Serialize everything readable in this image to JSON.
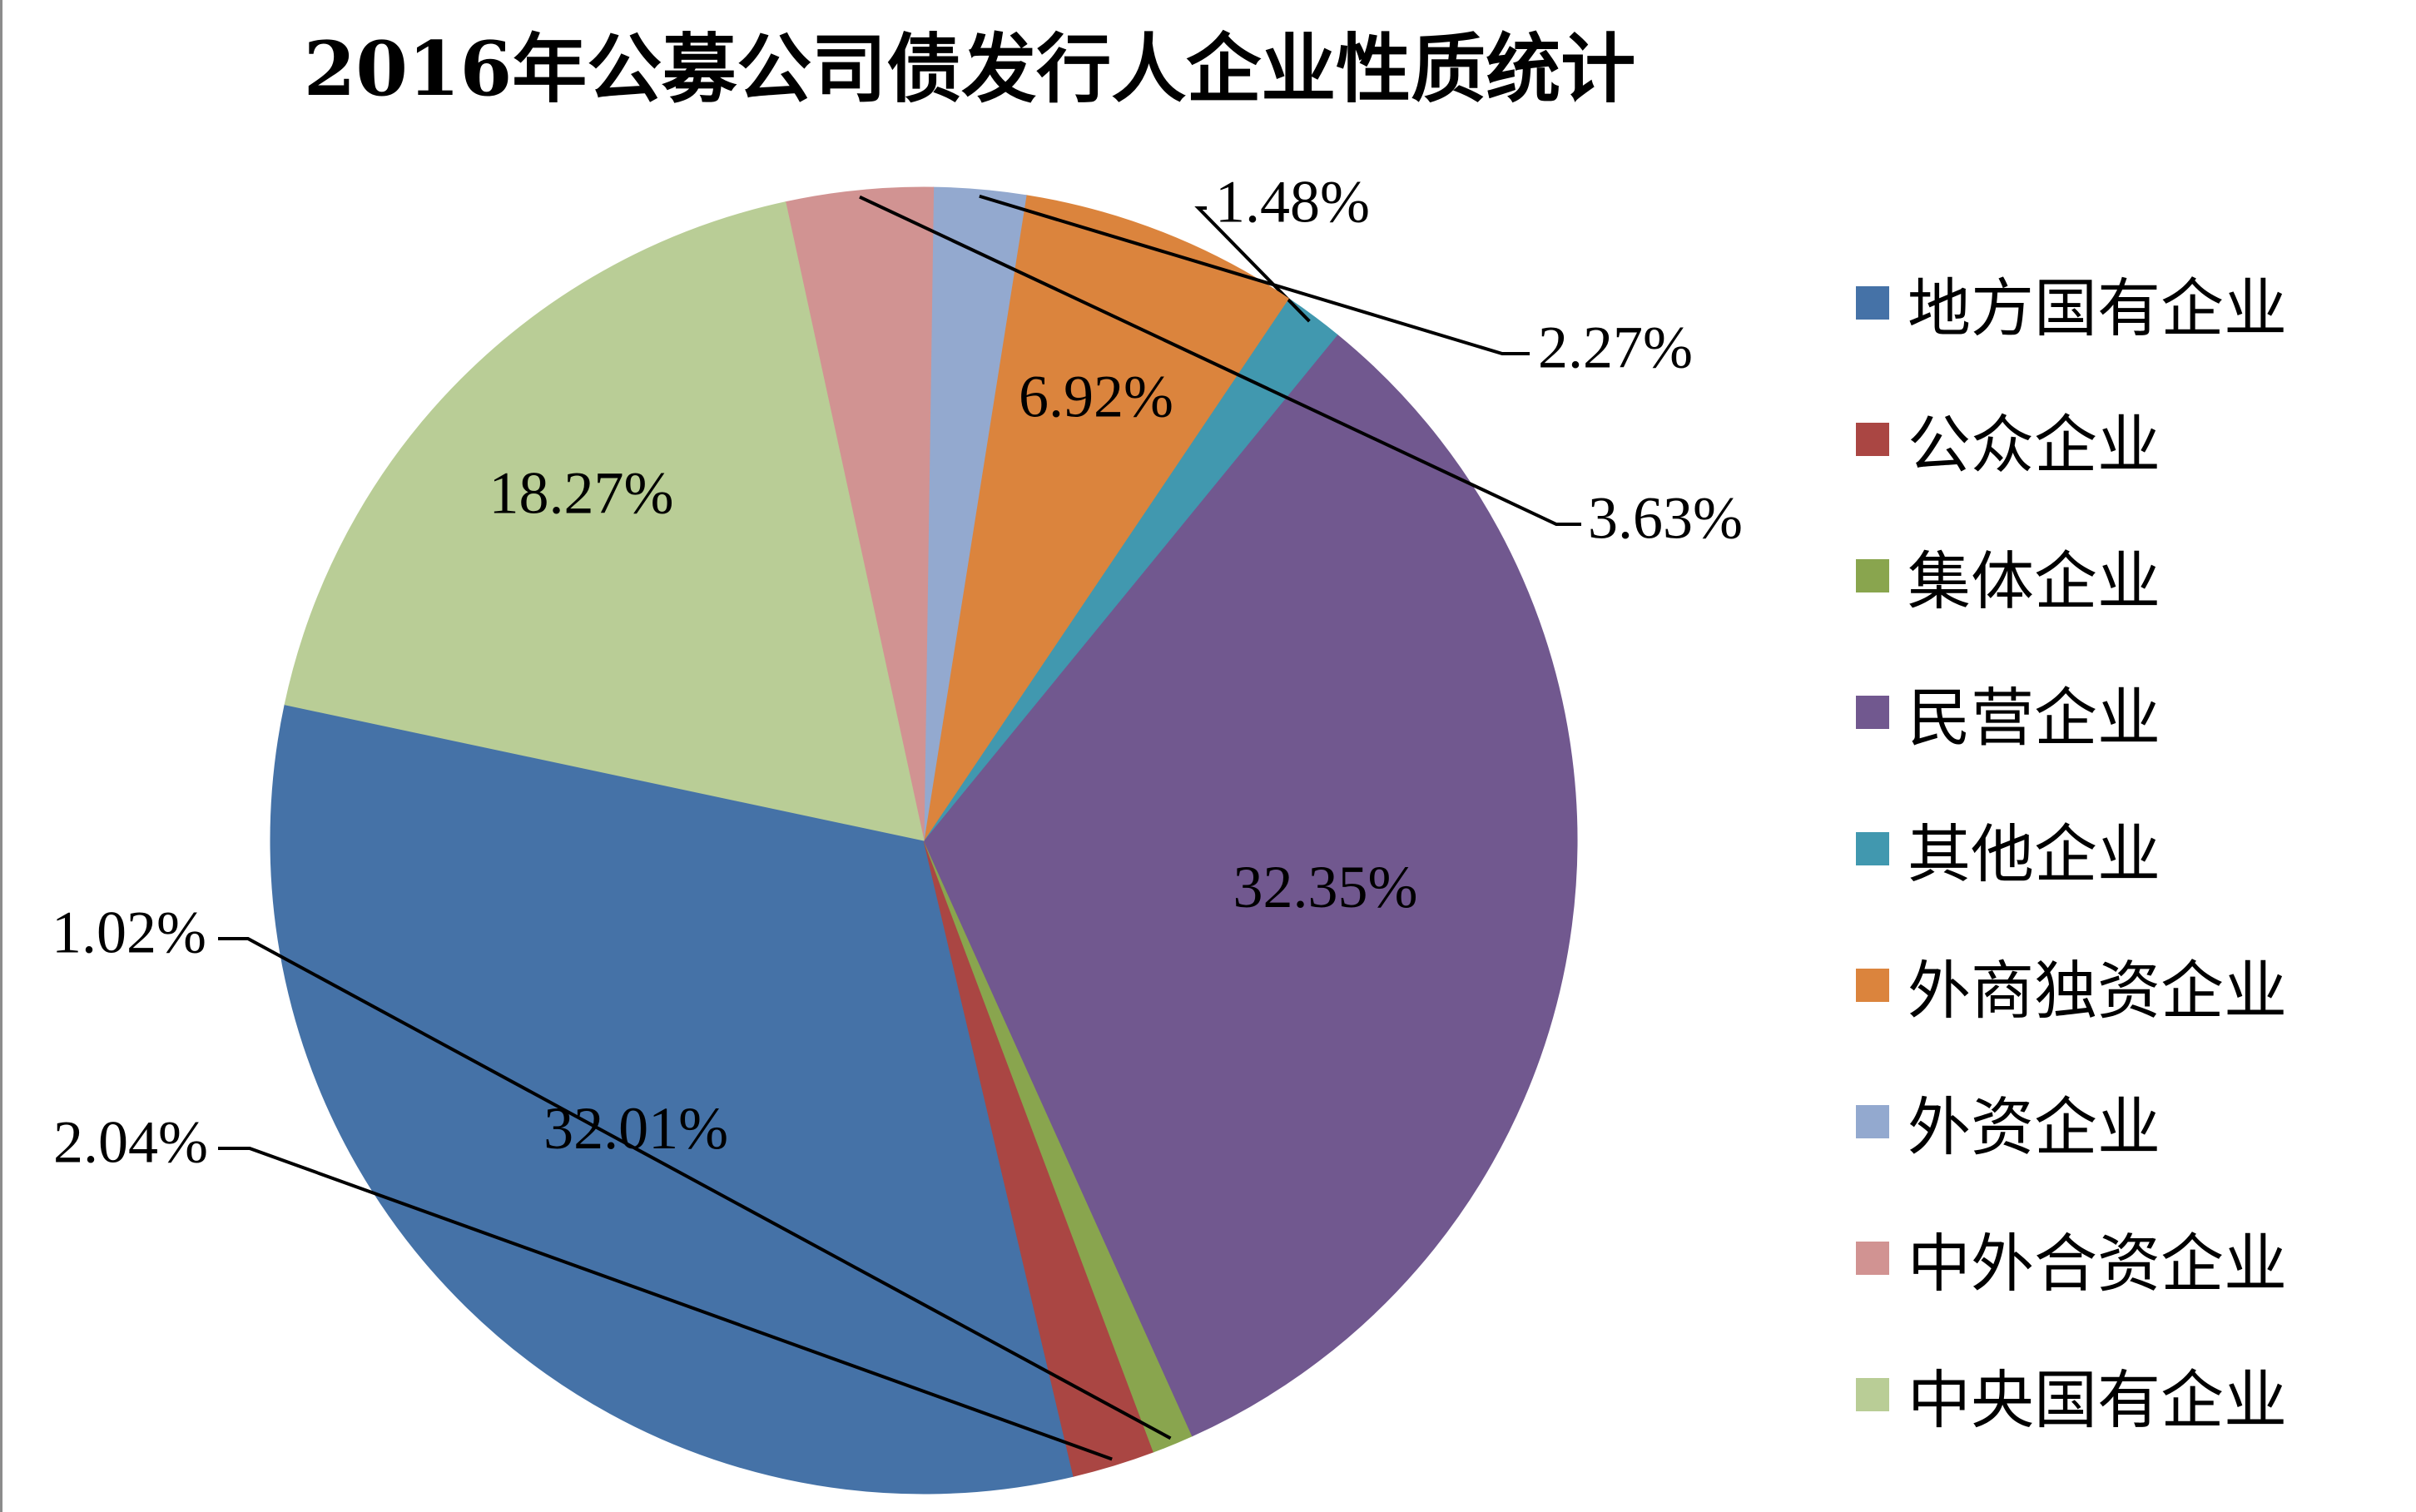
{
  "chart_data": {
    "type": "pie",
    "title": "2016年公募公司债发行人企业性质统计",
    "start_angle_deg": -168,
    "legend_position": "right",
    "slices": [
      {
        "name": "地方国有企业",
        "value": 32.01,
        "label": "32.01%",
        "color": "#4572A7",
        "label_mode": "inside"
      },
      {
        "name": "公众企业",
        "value": 2.04,
        "label": "2.04%",
        "color": "#AA4643",
        "label_mode": "outside"
      },
      {
        "name": "集体企业",
        "value": 1.02,
        "label": "1.02%",
        "color": "#89A54E",
        "label_mode": "outside"
      },
      {
        "name": "民营企业",
        "value": 32.35,
        "label": "32.35%",
        "color": "#71588F",
        "label_mode": "inside"
      },
      {
        "name": "其他企业",
        "value": 1.48,
        "label": "1.48%",
        "color": "#4198AF",
        "label_mode": "outside"
      },
      {
        "name": "外商独资企业",
        "value": 6.92,
        "label": "6.92%",
        "color": "#DB843D",
        "label_mode": "inside"
      },
      {
        "name": "外资企业",
        "value": 2.27,
        "label": "2.27%",
        "color": "#93A9CF",
        "label_mode": "outside"
      },
      {
        "name": "中外合资企业",
        "value": 3.63,
        "label": "3.63%",
        "color": "#D19392",
        "label_mode": "outside"
      },
      {
        "name": "中央国有企业",
        "value": 18.27,
        "label": "18.27%",
        "color": "#B9CD96",
        "label_mode": "inside"
      }
    ]
  }
}
